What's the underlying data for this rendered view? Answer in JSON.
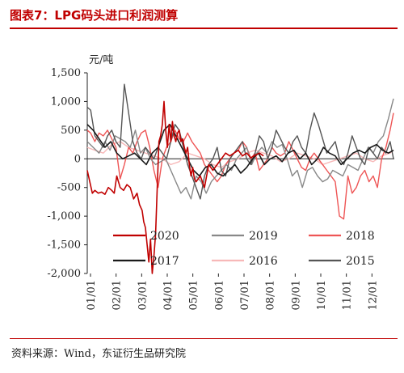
{
  "header": {
    "title": "图表7：LPG码头进口利润测算"
  },
  "footer": {
    "source": "资料来源：Wind，东证衍生品研究院"
  },
  "chart_data": {
    "type": "line",
    "ylabel": "元/吨",
    "ylim": [
      -2000,
      1500
    ],
    "yticks": [
      "1,500",
      "1,000",
      "500",
      "0",
      "-500",
      "-1,000",
      "-1,500",
      "-2,000"
    ],
    "x_ticks": [
      "01/01",
      "02/01",
      "03/01",
      "04/01",
      "05/01",
      "06/01",
      "07/01",
      "08/01",
      "09/01",
      "10/01",
      "11/01",
      "12/01"
    ],
    "legend_position": "inside-bottom",
    "series": [
      {
        "name": "2020",
        "color": "#c00000",
        "width": 1.6,
        "x": [
          1,
          4,
          7,
          10,
          14,
          18,
          22,
          26,
          30,
          33,
          36,
          40,
          44,
          48,
          52,
          56,
          60,
          63,
          66,
          68,
          70,
          72,
          74,
          76,
          78,
          80,
          82,
          84,
          86,
          88,
          90,
          92,
          94,
          96,
          98,
          100,
          102,
          104,
          106,
          108,
          110,
          112,
          114,
          116,
          118,
          120,
          122,
          124,
          126,
          128,
          130,
          135,
          140,
          145,
          150,
          155,
          160,
          165,
          170,
          175,
          180,
          185,
          190,
          195,
          200,
          205,
          210
        ],
        "y": [
          -200,
          -400,
          -600,
          -550,
          -600,
          -580,
          -620,
          -500,
          -550,
          -600,
          -300,
          -500,
          -550,
          -450,
          -500,
          -700,
          -600,
          -800,
          -900,
          -1100,
          -1200,
          -1500,
          -1800,
          -1400,
          -2000,
          -1700,
          -1300,
          -500,
          300,
          400,
          600,
          1000,
          500,
          200,
          600,
          300,
          650,
          400,
          300,
          450,
          500,
          300,
          350,
          200,
          100,
          200,
          -100,
          -300,
          -150,
          -350,
          -400,
          -300,
          -500,
          -100,
          -200,
          -100,
          0,
          100,
          50,
          100,
          150,
          50,
          100,
          20,
          60,
          100,
          50
        ]
      },
      {
        "name": "2019",
        "color": "#888888",
        "width": 1.4,
        "x": [
          1,
          8,
          15,
          22,
          28,
          34,
          40,
          46,
          52,
          58,
          64,
          70,
          76,
          82,
          88,
          94,
          100,
          106,
          112,
          118,
          124,
          130,
          136,
          142,
          148,
          154,
          160,
          166,
          172,
          178,
          184,
          190,
          196,
          202,
          208,
          214,
          220,
          226,
          232,
          238,
          244,
          250,
          256,
          262,
          268,
          274,
          280,
          286,
          292,
          298,
          304,
          310,
          316,
          322,
          328,
          334,
          340,
          346,
          352,
          358,
          364
        ],
        "y": [
          300,
          200,
          100,
          300,
          150,
          400,
          350,
          300,
          200,
          500,
          100,
          200,
          0,
          -100,
          -50,
          0,
          -200,
          -400,
          -600,
          -500,
          -700,
          -300,
          -400,
          -600,
          -400,
          -300,
          -200,
          -100,
          -200,
          0,
          100,
          200,
          -100,
          100,
          200,
          100,
          300,
          200,
          250,
          0,
          -300,
          -200,
          -500,
          -200,
          -150,
          -300,
          -400,
          -350,
          -200,
          -250,
          -300,
          -100,
          -150,
          -200,
          0,
          200,
          100,
          300,
          400,
          700,
          1050
        ]
      },
      {
        "name": "2018",
        "color": "#ee5555",
        "width": 1.4,
        "x": [
          1,
          5,
          10,
          15,
          20,
          25,
          30,
          35,
          40,
          45,
          50,
          55,
          60,
          65,
          70,
          75,
          80,
          85,
          90,
          95,
          100,
          105,
          110,
          115,
          120,
          125,
          130,
          135,
          140,
          145,
          150,
          155,
          160,
          165,
          170,
          175,
          180,
          185,
          190,
          195,
          200,
          205,
          210,
          215,
          220,
          225,
          230,
          235,
          240,
          245,
          250,
          255,
          260,
          265,
          270,
          275,
          280,
          285,
          290,
          295,
          300,
          305,
          310,
          315,
          320,
          325,
          330,
          335,
          340,
          345,
          350,
          355,
          360,
          364
        ],
        "y": [
          500,
          450,
          300,
          450,
          400,
          500,
          350,
          200,
          -350,
          -100,
          200,
          100,
          300,
          450,
          500,
          200,
          -200,
          -500,
          0,
          200,
          300,
          500,
          350,
          300,
          450,
          300,
          200,
          100,
          -100,
          -200,
          -300,
          -400,
          -300,
          -100,
          0,
          100,
          150,
          300,
          200,
          0,
          100,
          -200,
          -100,
          0,
          200,
          100,
          50,
          100,
          300,
          150,
          0,
          -150,
          -200,
          0,
          100,
          0,
          -100,
          -200,
          -300,
          -400,
          -1000,
          -1050,
          -300,
          -600,
          -500,
          -300,
          -200,
          -400,
          -300,
          -500,
          0,
          200,
          500,
          800
        ]
      },
      {
        "name": "2017",
        "color": "#1a1a1a",
        "width": 1.6,
        "x": [
          1,
          8,
          15,
          22,
          29,
          36,
          43,
          50,
          57,
          64,
          71,
          78,
          85,
          92,
          99,
          106,
          113,
          120,
          127,
          134,
          141,
          148,
          155,
          162,
          169,
          176,
          183,
          190,
          197,
          204,
          211,
          218,
          225,
          232,
          239,
          246,
          253,
          260,
          267,
          274,
          281,
          288,
          295,
          302,
          309,
          316,
          323,
          330,
          337,
          344,
          351,
          358,
          364
        ],
        "y": [
          600,
          500,
          350,
          200,
          300,
          100,
          0,
          50,
          100,
          0,
          -100,
          100,
          200,
          500,
          600,
          400,
          200,
          0,
          -200,
          -300,
          -150,
          -100,
          -250,
          -300,
          -200,
          -100,
          -250,
          -150,
          0,
          100,
          -100,
          0,
          50,
          -50,
          100,
          150,
          0,
          100,
          -100,
          0,
          200,
          100,
          50,
          -100,
          0,
          100,
          150,
          100,
          200,
          250,
          150,
          100,
          150
        ]
      },
      {
        "name": "2016",
        "color": "#f7b8b8",
        "width": 1.4,
        "x": [
          1,
          10,
          20,
          30,
          40,
          50,
          60,
          70,
          80,
          90,
          100,
          110,
          120,
          130,
          140,
          150,
          160,
          170,
          180,
          190,
          200,
          210,
          220,
          230,
          240,
          250,
          260,
          270,
          280,
          290,
          300,
          310,
          320,
          330,
          340,
          350,
          360,
          364
        ],
        "y": [
          200,
          150,
          100,
          250,
          300,
          200,
          150,
          100,
          50,
          0,
          -100,
          -50,
          100,
          50,
          0,
          -100,
          -150,
          -50,
          0,
          100,
          150,
          100,
          50,
          -50,
          0,
          100,
          50,
          0,
          -100,
          -50,
          0,
          50,
          100,
          0,
          -50,
          50,
          100,
          150
        ]
      },
      {
        "name": "2015",
        "color": "#555555",
        "width": 1.4,
        "x": [
          1,
          5,
          10,
          15,
          20,
          25,
          30,
          35,
          40,
          45,
          50,
          55,
          60,
          65,
          70,
          75,
          80,
          85,
          90,
          95,
          100,
          105,
          110,
          115,
          120,
          125,
          130,
          135,
          140,
          145,
          150,
          155,
          160,
          165,
          170,
          175,
          180,
          185,
          190,
          195,
          200,
          205,
          210,
          215,
          220,
          225,
          230,
          235,
          240,
          245,
          250,
          255,
          260,
          265,
          270,
          275,
          280,
          285,
          290,
          295,
          300,
          305,
          310,
          315,
          320,
          325,
          330,
          335,
          340,
          345,
          350,
          355,
          360,
          364
        ],
        "y": [
          900,
          850,
          400,
          300,
          200,
          400,
          500,
          300,
          200,
          1300,
          800,
          300,
          100,
          0,
          200,
          100,
          0,
          200,
          100,
          0,
          300,
          600,
          500,
          200,
          -100,
          -300,
          -500,
          -700,
          -300,
          -100,
          0,
          200,
          -200,
          -300,
          0,
          100,
          200,
          300,
          0,
          -100,
          100,
          400,
          300,
          0,
          200,
          500,
          350,
          200,
          100,
          300,
          400,
          200,
          100,
          500,
          800,
          600,
          350,
          100,
          200,
          300,
          0,
          -100,
          100,
          400,
          200,
          0,
          -100,
          200,
          100,
          0,
          200,
          100,
          300,
          0
        ]
      }
    ]
  }
}
